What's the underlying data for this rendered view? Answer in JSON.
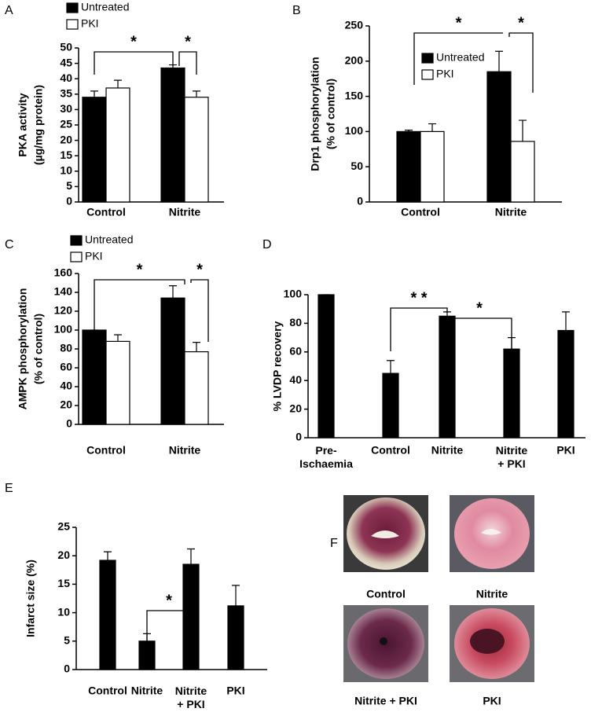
{
  "chart_data": [
    {
      "type": "bar",
      "label": "A",
      "ylabel": [
        "PKA activity",
        "(µg/mg protein)"
      ],
      "categories": [
        "Control",
        "Nitrite"
      ],
      "series": [
        {
          "name": "Untreated",
          "color": "#000000",
          "values": [
            34,
            43.5
          ],
          "errors": [
            2,
            1
          ]
        },
        {
          "name": "PKI",
          "color": "#ffffff",
          "values": [
            37,
            34
          ],
          "errors": [
            2.5,
            2
          ]
        }
      ],
      "ylim": [
        0,
        50
      ],
      "yticks": [
        0,
        5,
        10,
        15,
        20,
        25,
        30,
        35,
        40,
        45,
        50
      ],
      "annotations": [
        "*",
        "*"
      ]
    },
    {
      "type": "bar",
      "label": "B",
      "ylabel": [
        "Drp1 phosphorylation",
        "(% of control)"
      ],
      "categories": [
        "Control",
        "Nitrite"
      ],
      "series": [
        {
          "name": "Untreated",
          "color": "#000000",
          "values": [
            100,
            185
          ],
          "errors": [
            2,
            29
          ]
        },
        {
          "name": "PKI",
          "color": "#ffffff",
          "values": [
            100,
            86
          ],
          "errors": [
            11,
            30
          ]
        }
      ],
      "ylim": [
        0,
        250
      ],
      "yticks": [
        0,
        50,
        100,
        150,
        200,
        250
      ],
      "annotations": [
        "*",
        "*"
      ]
    },
    {
      "type": "bar",
      "label": "C",
      "ylabel": [
        "AMPK phosphorylation",
        "(% of control)"
      ],
      "categories": [
        "Control",
        "Nitrite"
      ],
      "series": [
        {
          "name": "Untreated",
          "color": "#000000",
          "values": [
            100,
            134
          ],
          "errors": [
            0,
            13
          ]
        },
        {
          "name": "PKI",
          "color": "#ffffff",
          "values": [
            88,
            77
          ],
          "errors": [
            7,
            10
          ]
        }
      ],
      "ylim": [
        0,
        160
      ],
      "yticks": [
        0,
        20,
        40,
        60,
        80,
        100,
        120,
        140,
        160
      ],
      "annotations": [
        "*",
        "*"
      ]
    },
    {
      "type": "bar",
      "label": "D",
      "ylabel": [
        "% LVDP recovery"
      ],
      "categories": [
        "Pre-\nIschaemia",
        "Control",
        "Nitrite",
        "Nitrite\n+ PKI",
        "PKI"
      ],
      "values": [
        100,
        45,
        85,
        62,
        75
      ],
      "errors": [
        0,
        9,
        3,
        8,
        13
      ],
      "color": "#000000",
      "ylim": [
        0,
        100
      ],
      "yticks": [
        0,
        20,
        40,
        60,
        80,
        100
      ],
      "annotations": [
        "* *",
        "*"
      ]
    },
    {
      "type": "bar",
      "label": "E",
      "ylabel": [
        "Infarct size (%)"
      ],
      "categories": [
        "Control",
        "Nitrite",
        "Nitrite\n+ PKI",
        "PKI"
      ],
      "values": [
        19.2,
        5,
        18.5,
        11.2
      ],
      "errors": [
        1.5,
        1.3,
        2.7,
        3.6
      ],
      "color": "#000000",
      "ylim": [
        0,
        25
      ],
      "yticks": [
        0,
        5,
        10,
        15,
        20,
        25
      ],
      "annotations": [
        "*"
      ]
    }
  ],
  "figure_f": {
    "label": "F",
    "captions": [
      "Control",
      "Nitrite",
      "Nitrite + PKI",
      "PKI"
    ]
  }
}
